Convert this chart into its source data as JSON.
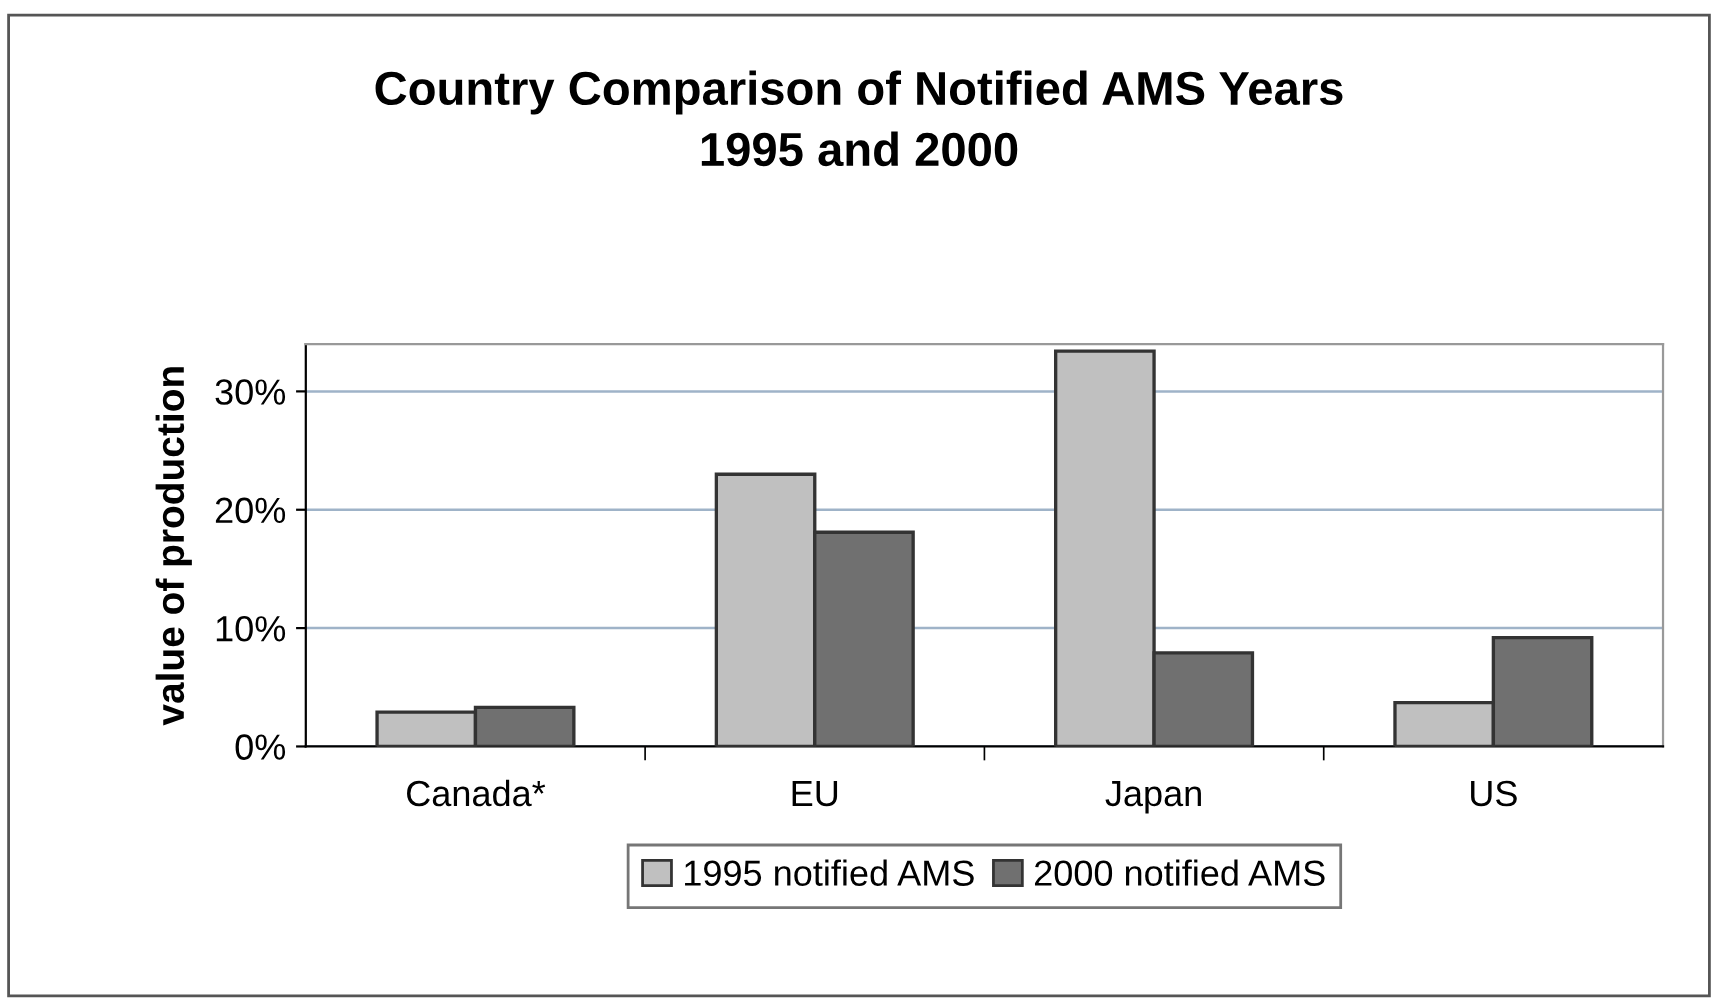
{
  "chart_data": {
    "type": "bar",
    "title": "Country Comparison of Notified AMS Years\n1995 and 2000",
    "ylabel": "value of production",
    "categories": [
      "Canada*",
      "EU",
      "Japan",
      "US"
    ],
    "series": [
      {
        "name": "1995 notified AMS",
        "color": "#c0c0c0",
        "values": [
          2.9,
          23.0,
          33.4,
          3.7
        ]
      },
      {
        "name": "2000 notified AMS",
        "color": "#707070",
        "values": [
          3.3,
          18.1,
          7.9,
          9.2
        ]
      }
    ],
    "ylim": [
      0,
      34
    ],
    "yticks": [
      {
        "value": 0,
        "label": "0%"
      },
      {
        "value": 10,
        "label": "10%"
      },
      {
        "value": 20,
        "label": "20%"
      },
      {
        "value": 30,
        "label": "30%"
      }
    ],
    "grid": "y",
    "legend": "bottom"
  }
}
